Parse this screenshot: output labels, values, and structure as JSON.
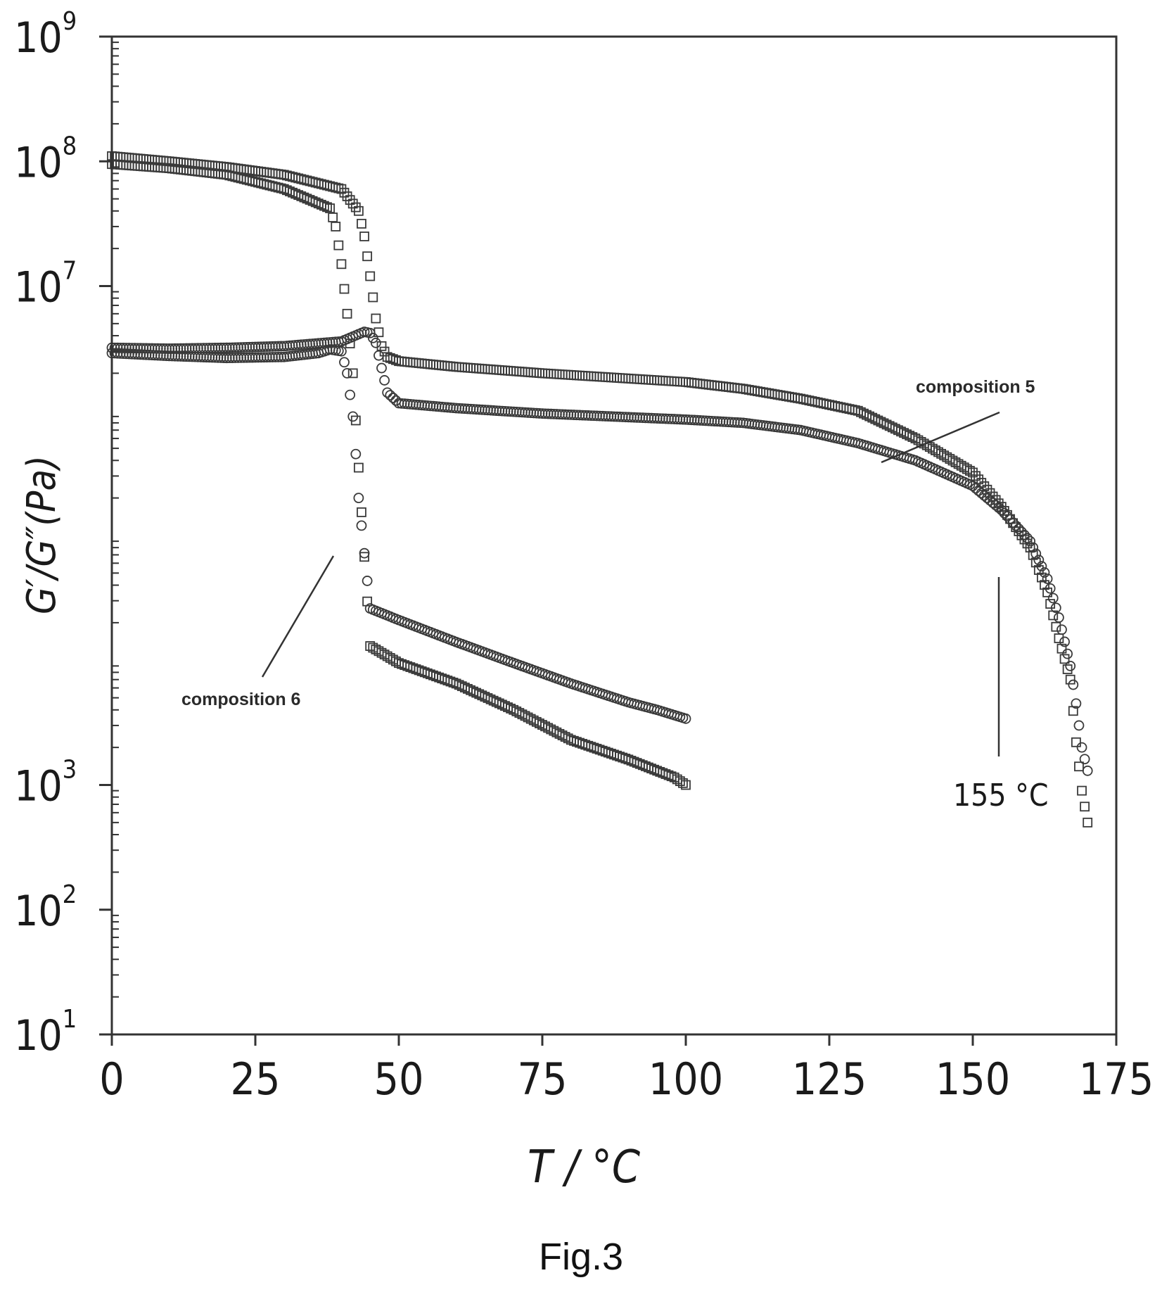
{
  "chart_data": {
    "type": "scatter",
    "title": "",
    "xlabel": "T / °C",
    "ylabel": "G′/G″(Pa)",
    "xlim": [
      0,
      175
    ],
    "ylim": [
      10,
      1000000000
    ],
    "yscale": "log",
    "x_ticks": [
      "0",
      "25",
      "50",
      "75",
      "100",
      "125",
      "150",
      "175"
    ],
    "y_ticks": [
      {
        "base": "10",
        "exp": "1"
      },
      {
        "base": "10",
        "exp": "2"
      },
      {
        "base": "10",
        "exp": "3"
      },
      {
        "base": "10",
        "exp": "7"
      },
      {
        "base": "10",
        "exp": "8"
      },
      {
        "base": "10",
        "exp": "9"
      }
    ],
    "y_tick_values": [
      10,
      100,
      1000,
      10000000,
      100000000,
      1000000000
    ],
    "grid": false,
    "series": [
      {
        "marker": "square",
        "x": [
          0,
          10,
          20,
          30,
          38,
          39,
          40,
          41,
          42,
          43,
          45,
          50,
          60,
          70,
          80,
          90,
          95,
          98,
          100
        ],
        "y": [
          95000000,
          88000000,
          78000000,
          60000000,
          42000000,
          30000000,
          15000000,
          6000000,
          2000000,
          350000,
          13000,
          9500,
          6500,
          4000,
          2300,
          1600,
          1300,
          1150,
          1000
        ]
      },
      {
        "marker": "circle",
        "x": [
          0,
          10,
          20,
          30,
          36,
          38,
          40,
          41,
          42,
          42.5,
          43,
          45,
          50,
          60,
          70,
          80,
          90,
          95,
          100
        ],
        "y": [
          2900000,
          2750000,
          2650000,
          2700000,
          2900000,
          3100000,
          3000000,
          2000000,
          900000,
          450000,
          200000,
          26000,
          21000,
          14000,
          9500,
          6500,
          4600,
          4000,
          3400
        ]
      },
      {
        "marker": "square",
        "x": [
          0,
          10,
          20,
          30,
          40,
          43,
          44,
          45,
          46,
          47,
          48,
          50,
          60,
          75,
          100,
          110,
          120,
          130,
          140,
          150,
          155,
          160,
          163,
          165,
          167,
          168,
          169,
          170
        ],
        "y": [
          110000000,
          100000000,
          90000000,
          78000000,
          60000000,
          40000000,
          25000000,
          12000000,
          5500000,
          3300000,
          2700000,
          2500000,
          2250000,
          2000000,
          1700000,
          1500000,
          1250000,
          1000000,
          600000,
          320000,
          170000,
          80000,
          35000,
          15000,
          7000,
          2200,
          900,
          500
        ]
      },
      {
        "marker": "circle",
        "x": [
          0,
          10,
          20,
          30,
          40,
          44,
          45,
          46,
          47,
          48,
          50,
          60,
          75,
          100,
          110,
          120,
          130,
          140,
          150,
          155,
          160,
          163,
          165,
          167,
          168,
          169,
          170
        ],
        "y": [
          3200000,
          3150000,
          3200000,
          3300000,
          3600000,
          4300000,
          4200000,
          3500000,
          2200000,
          1400000,
          1150000,
          1050000,
          950000,
          850000,
          800000,
          700000,
          550000,
          400000,
          250000,
          160000,
          90000,
          45000,
          22000,
          9000,
          4500,
          2000,
          1300
        ]
      }
    ],
    "annotations": [
      {
        "text": "composition 5",
        "x": 155,
        "y": 2700000
      },
      {
        "text": "composition 6",
        "x": 23,
        "y": 5000
      },
      {
        "text": "155 °C",
        "x": 155,
        "y": 1000
      }
    ]
  },
  "figure": {
    "caption": "Fig.3"
  }
}
